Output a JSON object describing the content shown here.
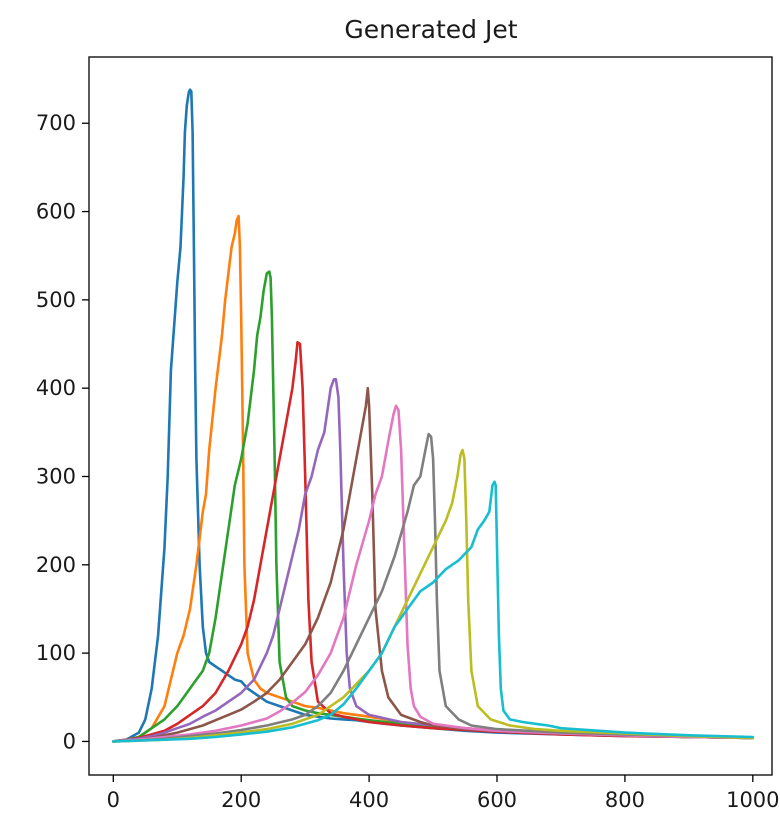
{
  "chart_data": {
    "type": "line",
    "title": "Generated Jet",
    "xlabel": "",
    "ylabel": "",
    "xlim": [
      -38,
      1030
    ],
    "ylim": [
      -38,
      775
    ],
    "xticks": [
      0,
      200,
      400,
      600,
      800,
      1000
    ],
    "yticks": [
      0,
      100,
      200,
      300,
      400,
      500,
      600,
      700
    ],
    "grid": false,
    "legend": false,
    "series": [
      {
        "color": "#1f77b4",
        "x": [
          0,
          20,
          40,
          50,
          60,
          70,
          80,
          85,
          90,
          95,
          100,
          105,
          110,
          112,
          115,
          118,
          120,
          122,
          124,
          126,
          128,
          130,
          135,
          140,
          145,
          150,
          160,
          170,
          180,
          190,
          200,
          210,
          220,
          230,
          240,
          260,
          280,
          300,
          320,
          340,
          360,
          380,
          400,
          450,
          500,
          550,
          600,
          700,
          800,
          900,
          1000
        ],
        "y": [
          0,
          2,
          10,
          25,
          60,
          120,
          220,
          300,
          420,
          470,
          520,
          560,
          640,
          690,
          720,
          735,
          738,
          736,
          690,
          560,
          420,
          320,
          200,
          130,
          100,
          90,
          85,
          80,
          75,
          70,
          68,
          60,
          55,
          50,
          45,
          40,
          35,
          30,
          28,
          26,
          25,
          24,
          22,
          18,
          15,
          12,
          10,
          8,
          6,
          5,
          4
        ]
      },
      {
        "color": "#ff7f0e",
        "x": [
          0,
          20,
          40,
          60,
          80,
          90,
          100,
          110,
          120,
          130,
          140,
          145,
          150,
          160,
          170,
          175,
          180,
          185,
          190,
          193,
          196,
          198,
          200,
          203,
          205,
          210,
          220,
          230,
          240,
          260,
          280,
          300,
          320,
          340,
          360,
          380,
          400,
          450,
          500,
          550,
          600,
          700,
          800,
          900,
          1000
        ],
        "y": [
          0,
          2,
          5,
          15,
          40,
          70,
          100,
          120,
          150,
          200,
          260,
          280,
          330,
          400,
          460,
          500,
          530,
          560,
          575,
          590,
          595,
          560,
          480,
          330,
          200,
          100,
          70,
          60,
          55,
          50,
          45,
          40,
          38,
          35,
          32,
          30,
          28,
          22,
          18,
          15,
          12,
          9,
          7,
          5,
          4
        ]
      },
      {
        "color": "#2ca02c",
        "x": [
          0,
          20,
          40,
          60,
          80,
          100,
          120,
          140,
          150,
          160,
          170,
          180,
          190,
          200,
          210,
          220,
          225,
          230,
          235,
          240,
          244,
          246,
          248,
          252,
          255,
          260,
          270,
          280,
          300,
          320,
          340,
          360,
          380,
          400,
          450,
          500,
          550,
          600,
          700,
          800,
          900,
          1000
        ],
        "y": [
          0,
          2,
          5,
          15,
          25,
          40,
          60,
          80,
          100,
          140,
          190,
          240,
          290,
          320,
          360,
          420,
          460,
          480,
          510,
          530,
          532,
          525,
          480,
          330,
          200,
          90,
          50,
          40,
          35,
          32,
          30,
          28,
          26,
          24,
          20,
          16,
          14,
          12,
          9,
          7,
          5,
          4
        ]
      },
      {
        "color": "#d62728",
        "x": [
          0,
          20,
          40,
          60,
          80,
          100,
          120,
          140,
          160,
          180,
          200,
          210,
          220,
          230,
          240,
          250,
          260,
          270,
          280,
          285,
          288,
          292,
          296,
          300,
          305,
          310,
          320,
          340,
          360,
          380,
          400,
          450,
          500,
          550,
          600,
          700,
          800,
          900,
          1000
        ],
        "y": [
          0,
          2,
          4,
          8,
          12,
          20,
          30,
          40,
          55,
          80,
          110,
          130,
          160,
          200,
          240,
          280,
          320,
          360,
          400,
          430,
          452,
          450,
          400,
          300,
          160,
          90,
          45,
          32,
          28,
          25,
          22,
          18,
          15,
          13,
          11,
          8,
          6,
          5,
          4
        ]
      },
      {
        "color": "#9467bd",
        "x": [
          0,
          20,
          40,
          60,
          80,
          100,
          120,
          140,
          160,
          180,
          200,
          220,
          240,
          250,
          260,
          270,
          280,
          290,
          300,
          310,
          320,
          330,
          340,
          345,
          348,
          352,
          355,
          360,
          365,
          370,
          380,
          400,
          450,
          500,
          550,
          600,
          700,
          800,
          900,
          1000
        ],
        "y": [
          0,
          2,
          3,
          6,
          10,
          15,
          20,
          28,
          35,
          45,
          55,
          70,
          100,
          120,
          150,
          180,
          210,
          240,
          280,
          300,
          330,
          350,
          400,
          410,
          410,
          390,
          330,
          200,
          100,
          60,
          40,
          30,
          22,
          18,
          15,
          12,
          9,
          7,
          5,
          4
        ]
      },
      {
        "color": "#8c564b",
        "x": [
          0,
          20,
          40,
          60,
          80,
          100,
          120,
          140,
          160,
          180,
          200,
          220,
          240,
          260,
          280,
          300,
          320,
          330,
          340,
          350,
          360,
          370,
          380,
          385,
          390,
          395,
          398,
          400,
          405,
          410,
          420,
          430,
          450,
          480,
          500,
          550,
          600,
          700,
          800,
          900,
          1000
        ],
        "y": [
          0,
          1,
          2,
          4,
          7,
          10,
          14,
          18,
          24,
          30,
          36,
          45,
          55,
          70,
          90,
          110,
          140,
          160,
          180,
          210,
          240,
          280,
          320,
          340,
          360,
          380,
          400,
          380,
          280,
          150,
          80,
          50,
          30,
          22,
          18,
          14,
          12,
          9,
          7,
          5,
          4
        ]
      },
      {
        "color": "#e377c2",
        "x": [
          0,
          40,
          80,
          120,
          160,
          200,
          240,
          260,
          280,
          300,
          320,
          340,
          360,
          380,
          400,
          410,
          420,
          430,
          438,
          442,
          446,
          450,
          455,
          460,
          465,
          470,
          480,
          500,
          550,
          600,
          700,
          800,
          900,
          1000
        ],
        "y": [
          0,
          2,
          5,
          8,
          12,
          18,
          26,
          34,
          44,
          56,
          75,
          100,
          140,
          200,
          250,
          280,
          300,
          340,
          370,
          380,
          375,
          330,
          220,
          110,
          60,
          40,
          28,
          20,
          15,
          12,
          9,
          7,
          5,
          4
        ]
      },
      {
        "color": "#7f7f7f",
        "x": [
          0,
          40,
          80,
          120,
          160,
          200,
          240,
          280,
          300,
          320,
          340,
          360,
          380,
          400,
          420,
          440,
          460,
          470,
          480,
          488,
          493,
          497,
          500,
          503,
          506,
          510,
          520,
          540,
          560,
          600,
          700,
          800,
          900,
          1000
        ],
        "y": [
          0,
          1,
          3,
          6,
          9,
          13,
          18,
          25,
          30,
          40,
          55,
          80,
          110,
          140,
          170,
          210,
          260,
          290,
          300,
          330,
          348,
          345,
          320,
          250,
          160,
          80,
          40,
          25,
          18,
          14,
          10,
          8,
          6,
          4
        ]
      },
      {
        "color": "#bcbd22",
        "x": [
          0,
          40,
          80,
          120,
          160,
          200,
          240,
          280,
          320,
          360,
          400,
          420,
          440,
          460,
          480,
          500,
          520,
          530,
          538,
          543,
          546,
          549,
          552,
          555,
          560,
          570,
          590,
          620,
          660,
          700,
          800,
          900,
          1000
        ],
        "y": [
          0,
          1,
          2,
          4,
          7,
          10,
          14,
          20,
          30,
          50,
          80,
          100,
          130,
          160,
          190,
          220,
          250,
          270,
          300,
          325,
          330,
          320,
          250,
          160,
          80,
          40,
          25,
          18,
          14,
          12,
          9,
          6,
          4
        ]
      },
      {
        "color": "#17becf",
        "x": [
          0,
          40,
          80,
          120,
          160,
          200,
          240,
          280,
          320,
          340,
          360,
          380,
          400,
          420,
          440,
          460,
          480,
          500,
          520,
          540,
          560,
          570,
          580,
          588,
          593,
          596,
          598,
          600,
          603,
          606,
          610,
          620,
          640,
          660,
          680,
          700,
          800,
          900,
          1000
        ],
        "y": [
          0,
          1,
          2,
          3,
          5,
          8,
          11,
          16,
          24,
          30,
          42,
          60,
          80,
          100,
          130,
          150,
          170,
          180,
          195,
          205,
          220,
          240,
          250,
          260,
          290,
          294,
          290,
          220,
          120,
          60,
          35,
          25,
          22,
          20,
          18,
          15,
          10,
          7,
          5
        ]
      }
    ]
  }
}
